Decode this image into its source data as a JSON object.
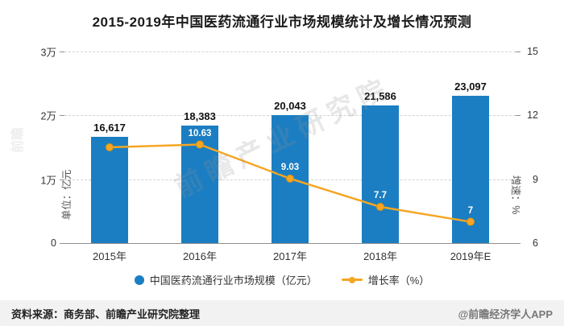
{
  "title": "2015-2019年中国医药流通行业市场规模统计及增长情况预测",
  "watermark": {
    "text": "前瞻产业研究院",
    "side_text": "前瞻"
  },
  "chart_data": {
    "type": "bar+line",
    "categories": [
      "2015年",
      "2016年",
      "2017年",
      "2018年",
      "2019年E"
    ],
    "series": [
      {
        "name": "中国医药流通行业市场规模（亿元）",
        "type": "bar",
        "axis": "left",
        "color": "#1b7ec2",
        "values": [
          16617,
          18383,
          20043,
          21586,
          23097
        ],
        "labels": [
          "16,617",
          "18,383",
          "20,043",
          "21,586",
          "23,097"
        ]
      },
      {
        "name": "增长率（%）",
        "type": "line",
        "axis": "right",
        "color": "#f5a623",
        "values": [
          10.5,
          10.63,
          9.03,
          7.7,
          7
        ],
        "labels": [
          "",
          "10.63",
          "9.03",
          "7.7",
          "7"
        ]
      }
    ],
    "left_axis": {
      "label": "单位：亿元",
      "min": 0,
      "max": 30000,
      "ticks": [
        "0",
        "1万",
        "2万",
        "3万"
      ]
    },
    "right_axis": {
      "label": "增速：%",
      "min": 6,
      "max": 15,
      "ticks": [
        "6",
        "9",
        "12",
        "15"
      ]
    },
    "legend_position": "bottom",
    "grid": "dashed-horizontal"
  },
  "footer": {
    "source": "资料来源：商务部、前瞻产业研究院整理",
    "credit": "@前瞻经济学人APP"
  }
}
